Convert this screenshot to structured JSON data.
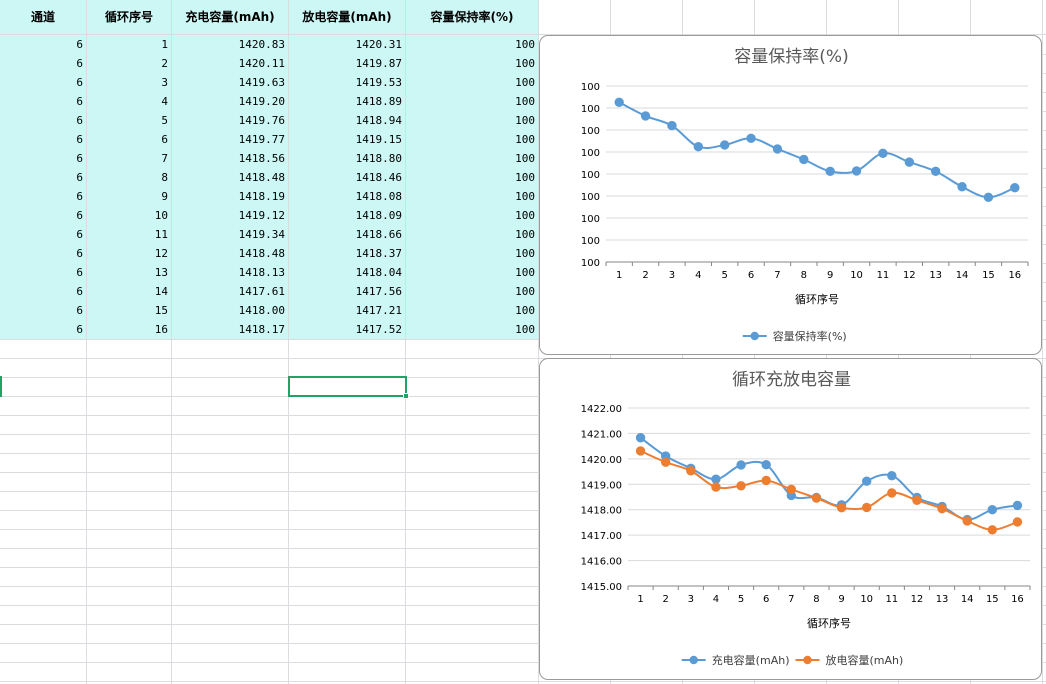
{
  "sheet": {
    "headers": [
      "通道",
      "循环序号",
      "充电容量(mAh)",
      "放电容量(mAh)",
      "容量保持率(%)"
    ],
    "rows": [
      [
        "6",
        "1",
        "1420.83",
        "1420.31",
        "100"
      ],
      [
        "6",
        "2",
        "1420.11",
        "1419.87",
        "100"
      ],
      [
        "6",
        "3",
        "1419.63",
        "1419.53",
        "100"
      ],
      [
        "6",
        "4",
        "1419.20",
        "1418.89",
        "100"
      ],
      [
        "6",
        "5",
        "1419.76",
        "1418.94",
        "100"
      ],
      [
        "6",
        "6",
        "1419.77",
        "1419.15",
        "100"
      ],
      [
        "6",
        "7",
        "1418.56",
        "1418.80",
        "100"
      ],
      [
        "6",
        "8",
        "1418.48",
        "1418.46",
        "100"
      ],
      [
        "6",
        "9",
        "1418.19",
        "1418.08",
        "100"
      ],
      [
        "6",
        "10",
        "1419.12",
        "1418.09",
        "100"
      ],
      [
        "6",
        "11",
        "1419.34",
        "1418.66",
        "100"
      ],
      [
        "6",
        "12",
        "1418.48",
        "1418.37",
        "100"
      ],
      [
        "6",
        "13",
        "1418.13",
        "1418.04",
        "100"
      ],
      [
        "6",
        "14",
        "1417.61",
        "1417.56",
        "100"
      ],
      [
        "6",
        "15",
        "1418.00",
        "1417.21",
        "100"
      ],
      [
        "6",
        "16",
        "1418.17",
        "1417.52",
        "100"
      ]
    ],
    "fill_color": "#ccf7f5",
    "selection_color": "#21a366"
  },
  "chart_data": [
    {
      "type": "line",
      "title": "容量保持率(%)",
      "xlabel": "循环序号",
      "ylabel": "",
      "categories": [
        "1",
        "2",
        "3",
        "4",
        "5",
        "6",
        "7",
        "8",
        "9",
        "10",
        "11",
        "12",
        "13",
        "14",
        "15",
        "16"
      ],
      "y_tick_labels": [
        "100",
        "100",
        "100",
        "100",
        "100",
        "100",
        "100",
        "100",
        "100"
      ],
      "series": [
        {
          "name": "容量保持率(%)",
          "color": "#5b9bd5",
          "values": [
            99.963,
            99.932,
            99.91,
            99.862,
            99.866,
            99.881,
            99.857,
            99.833,
            99.806,
            99.807,
            99.847,
            99.827,
            99.806,
            99.771,
            99.747,
            99.769
          ]
        }
      ],
      "ylim": [
        99.6,
        100.0
      ],
      "grid": true,
      "legend": "bottom"
    },
    {
      "type": "line",
      "title": "循环充放电容量",
      "xlabel": "循环序号",
      "ylabel": "",
      "categories": [
        "1",
        "2",
        "3",
        "4",
        "5",
        "6",
        "7",
        "8",
        "9",
        "10",
        "11",
        "12",
        "13",
        "14",
        "15",
        "16"
      ],
      "y_tick_labels": [
        "1415.00",
        "1416.00",
        "1417.00",
        "1418.00",
        "1419.00",
        "1420.00",
        "1421.00",
        "1422.00"
      ],
      "series": [
        {
          "name": "充电容量(mAh)",
          "color": "#5b9bd5",
          "values": [
            1420.83,
            1420.11,
            1419.63,
            1419.2,
            1419.76,
            1419.77,
            1418.56,
            1418.48,
            1418.19,
            1419.12,
            1419.34,
            1418.48,
            1418.13,
            1417.61,
            1418.0,
            1418.17
          ]
        },
        {
          "name": "放电容量(mAh)",
          "color": "#ed7d31",
          "values": [
            1420.31,
            1419.87,
            1419.53,
            1418.89,
            1418.94,
            1419.15,
            1418.8,
            1418.46,
            1418.08,
            1418.09,
            1418.66,
            1418.37,
            1418.04,
            1417.56,
            1417.21,
            1417.52
          ]
        }
      ],
      "ylim": [
        1415.0,
        1422.0
      ],
      "grid": true,
      "legend": "bottom"
    }
  ]
}
